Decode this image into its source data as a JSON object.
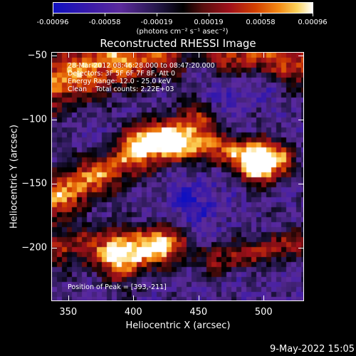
{
  "colorbar": {
    "ticks": [
      "-0.00096",
      "-0.00058",
      "-0.00019",
      "0.00019",
      "0.00058",
      "0.00096"
    ],
    "units": "(photons cm⁻² s⁻¹ asec⁻²)"
  },
  "chart_data": {
    "type": "heatmap",
    "title": "Reconstructed RHESSI Image",
    "xlabel": "Heliocentric X (arcsec)",
    "ylabel": "Heliocentric Y (arcsec)",
    "xlim": [
      337,
      531
    ],
    "ylim": [
      -242,
      -47
    ],
    "xticks": [
      350,
      400,
      450,
      500
    ],
    "yticks": [
      -50,
      -100,
      -150,
      -200
    ],
    "colorbar_range": [
      -0.00096,
      0.00096
    ],
    "colormap": "blue-purple-black-red-orange-yellow-white",
    "annotations": [
      "28-Mar-2012 08:46:28.000 to 08:47:20.000",
      "Detectors: 3F 5F 6F 7F 8F, Att 0",
      "Energy Range: 12.0 - 25.0 keV",
      "Clean    Total counts: 2.22E+03"
    ],
    "peak_label": "Position of Peak = [393,-211]",
    "peak": [
      393,
      -211
    ]
  },
  "footer": {
    "date": "9-May-2022 15:05"
  }
}
